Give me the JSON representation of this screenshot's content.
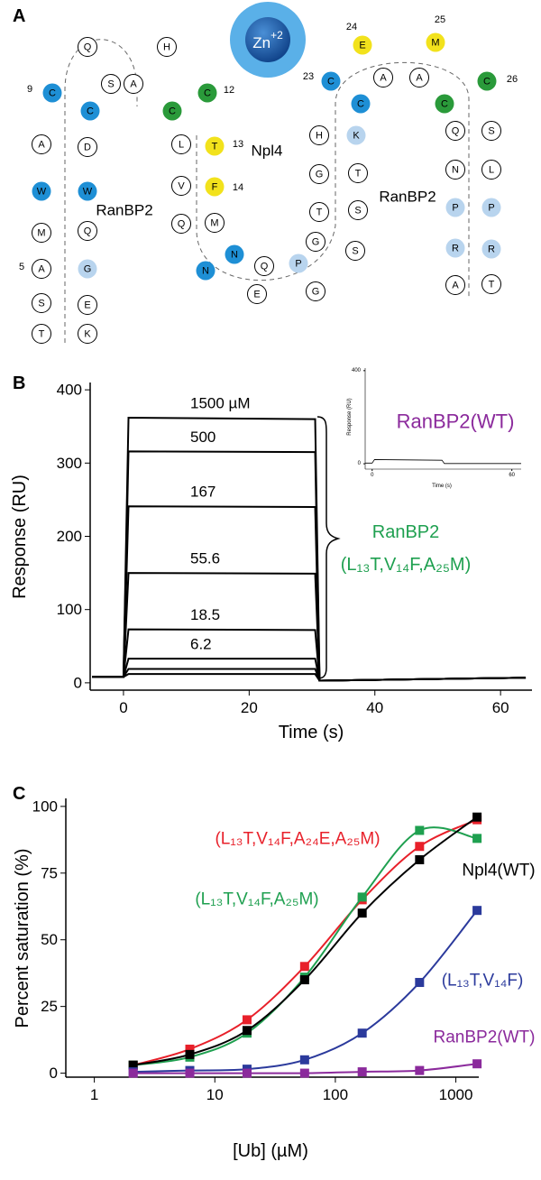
{
  "diagram": {
    "panel_label": "A",
    "ion": {
      "symbol": "Zn",
      "charge": "+2"
    },
    "nodes": [
      {
        "letter": "C",
        "color": "#1e8fd5"
      },
      {
        "letter": "Q",
        "color": "#ffffff"
      },
      {
        "letter": "S",
        "color": "#ffffff"
      },
      {
        "letter": "C",
        "color": "#1e8fd5"
      },
      {
        "letter": "A",
        "color": "#ffffff"
      },
      {
        "letter": "D",
        "color": "#ffffff"
      },
      {
        "letter": "W",
        "color": "#1e8fd5"
      },
      {
        "letter": "W",
        "color": "#1e8fd5"
      },
      {
        "letter": "M",
        "color": "#ffffff"
      },
      {
        "letter": "Q",
        "color": "#ffffff"
      },
      {
        "letter": "A",
        "color": "#ffffff"
      },
      {
        "letter": "G",
        "color": "#b8d4ee"
      },
      {
        "letter": "S",
        "color": "#ffffff"
      },
      {
        "letter": "E",
        "color": "#ffffff"
      },
      {
        "letter": "T",
        "color": "#ffffff"
      },
      {
        "letter": "K",
        "color": "#ffffff"
      },
      {
        "letter": "H",
        "color": "#ffffff"
      },
      {
        "letter": "A",
        "color": "#ffffff"
      },
      {
        "letter": "C",
        "color": "#2a9a3a"
      },
      {
        "letter": "C",
        "color": "#2a9a3a"
      },
      {
        "letter": "L",
        "color": "#ffffff"
      },
      {
        "letter": "T",
        "color": "#f2e21c"
      },
      {
        "letter": "V",
        "color": "#ffffff"
      },
      {
        "letter": "F",
        "color": "#f2e21c"
      },
      {
        "letter": "Q",
        "color": "#ffffff"
      },
      {
        "letter": "M",
        "color": "#ffffff"
      },
      {
        "letter": "N",
        "color": "#1e8fd5"
      },
      {
        "letter": "N",
        "color": "#1e8fd5"
      },
      {
        "letter": "Q",
        "color": "#ffffff"
      },
      {
        "letter": "E",
        "color": "#ffffff"
      },
      {
        "letter": "P",
        "color": "#b8d4ee"
      },
      {
        "letter": "G",
        "color": "#ffffff"
      },
      {
        "letter": "G",
        "color": "#ffffff"
      },
      {
        "letter": "E",
        "color": "#f2e21c"
      },
      {
        "letter": "M",
        "color": "#f2e21c"
      },
      {
        "letter": "C",
        "color": "#1e8fd5"
      },
      {
        "letter": "A",
        "color": "#ffffff"
      },
      {
        "letter": "A",
        "color": "#ffffff"
      },
      {
        "letter": "C",
        "color": "#1e8fd5"
      },
      {
        "letter": "C",
        "color": "#2a9a3a"
      },
      {
        "letter": "C",
        "color": "#2a9a3a"
      },
      {
        "letter": "H",
        "color": "#ffffff"
      },
      {
        "letter": "K",
        "color": "#b8d4ee"
      },
      {
        "letter": "G",
        "color": "#ffffff"
      },
      {
        "letter": "T",
        "color": "#ffffff"
      },
      {
        "letter": "T",
        "color": "#ffffff"
      },
      {
        "letter": "S",
        "color": "#ffffff"
      },
      {
        "letter": "S",
        "color": "#ffffff"
      },
      {
        "letter": "Q",
        "color": "#ffffff"
      },
      {
        "letter": "S",
        "color": "#ffffff"
      },
      {
        "letter": "N",
        "color": "#ffffff"
      },
      {
        "letter": "L",
        "color": "#ffffff"
      },
      {
        "letter": "P",
        "color": "#b8d4ee"
      },
      {
        "letter": "P",
        "color": "#b8d4ee"
      },
      {
        "letter": "R",
        "color": "#b8d4ee"
      },
      {
        "letter": "R",
        "color": "#b8d4ee"
      },
      {
        "letter": "A",
        "color": "#ffffff"
      },
      {
        "letter": "T",
        "color": "#ffffff"
      }
    ],
    "residue_numbers": [
      9,
      12,
      13,
      14,
      23,
      24,
      25,
      26,
      5
    ],
    "labels": [
      "RanBP2",
      "Npl4",
      "RanBP2"
    ]
  },
  "chart_data": [
    {
      "panel_label": "B",
      "type": "line",
      "x_label": "Time (s)",
      "y_label": "Response (RU)",
      "xlim": [
        -5.3,
        65
      ],
      "ylim": [
        -10,
        410
      ],
      "xticks": [
        0,
        20,
        40,
        60
      ],
      "yticks": [
        0,
        100,
        200,
        300,
        400
      ],
      "x": [
        -5,
        0,
        0.8,
        30.5,
        31.2,
        40,
        64
      ],
      "series": [
        {
          "name": "1500 µM",
          "color": "#000000",
          "values": [
            8,
            8,
            362,
            360,
            3,
            4,
            7
          ]
        },
        {
          "name": "500",
          "color": "#000000",
          "values": [
            8,
            8,
            316,
            315,
            3,
            4,
            7
          ]
        },
        {
          "name": "167",
          "color": "#000000",
          "values": [
            8,
            8,
            241,
            240,
            3,
            4,
            7
          ]
        },
        {
          "name": "55.6",
          "color": "#000000",
          "values": [
            8,
            8,
            150,
            149,
            3,
            4,
            7
          ]
        },
        {
          "name": "18.5",
          "color": "#000000",
          "values": [
            8,
            8,
            73,
            72,
            3,
            4,
            7
          ]
        },
        {
          "name": "6.2",
          "color": "#000000",
          "values": [
            8,
            8,
            33,
            33,
            3,
            4,
            7
          ]
        },
        {
          "color": "#000000",
          "values": [
            8,
            8,
            19,
            19,
            3,
            4,
            7
          ]
        },
        {
          "color": "#000000",
          "values": [
            8,
            8,
            12,
            12,
            3,
            4,
            7
          ]
        }
      ],
      "annotations": [
        {
          "text": "RanBP2",
          "color": "#1fa050"
        },
        {
          "text": "(L₁₃T,V₁₄F,A₂₅M)",
          "color": "#1fa050"
        }
      ]
    },
    {
      "type": "line",
      "x_label": "Time (s)",
      "y_label": "Response (RU)",
      "xlim": [
        -3,
        64
      ],
      "ylim": [
        -23,
        411
      ],
      "xticks": [
        0,
        60
      ],
      "yticks": [
        0,
        400
      ],
      "x": [
        -3,
        0,
        1,
        30,
        31,
        64
      ],
      "series": [
        {
          "name": "RanBP2(WT)",
          "color": "#000000",
          "label_color": "#8b2a9c",
          "values": [
            3,
            3,
            18,
            15,
            1,
            1
          ]
        }
      ]
    },
    {
      "panel_label": "C",
      "type": "line",
      "xscale": "log",
      "marker": "square",
      "smooth": true,
      "x_label": "[Ub] (µM)",
      "y_label": "Percent saturation (%)",
      "xlim": [
        0.58,
        1550
      ],
      "ylim": [
        -1.5,
        103
      ],
      "xticks": [
        1,
        10,
        100,
        1000
      ],
      "yticks": [
        0,
        25,
        50,
        75,
        100
      ],
      "x": [
        2.1,
        6.2,
        18.5,
        55.6,
        167,
        500,
        1500
      ],
      "series": [
        {
          "name": "(L₁₃T,V₁₄F,A₂₄E,A₂₅M)",
          "color": "#e8202a",
          "values": [
            3,
            9,
            20,
            40,
            65,
            85,
            95
          ]
        },
        {
          "name": "(L₁₃T,V₁₄F,A₂₅M)",
          "color": "#1fa050",
          "values": [
            3,
            6,
            15,
            36,
            66,
            91,
            88
          ]
        },
        {
          "name": "Npl4(WT)",
          "color": "#000000",
          "values": [
            3,
            7,
            16,
            35,
            60,
            80,
            96
          ]
        },
        {
          "name": "(L₁₃T,V₁₄F)",
          "color": "#2b3a9c",
          "values": [
            0.5,
            1,
            1.5,
            5,
            15,
            34,
            61
          ]
        },
        {
          "name": "RanBP2(WT)",
          "color": "#8b2a9c",
          "values": [
            0,
            0,
            0,
            0,
            0.5,
            1,
            3.5
          ]
        }
      ]
    }
  ]
}
